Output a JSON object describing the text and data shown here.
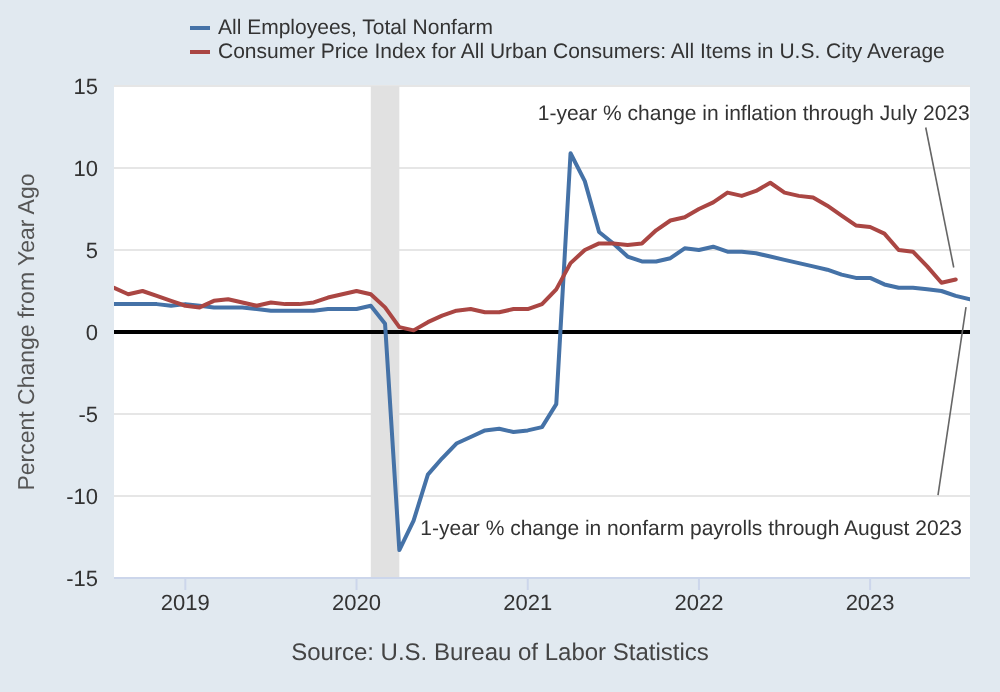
{
  "chart_data": {
    "type": "line",
    "ylabel": "Percent Change from Year Ago",
    "x": [
      "2018-08",
      "2018-09",
      "2018-10",
      "2018-11",
      "2018-12",
      "2019-01",
      "2019-02",
      "2019-03",
      "2019-04",
      "2019-05",
      "2019-06",
      "2019-07",
      "2019-08",
      "2019-09",
      "2019-10",
      "2019-11",
      "2019-12",
      "2020-01",
      "2020-02",
      "2020-03",
      "2020-04",
      "2020-05",
      "2020-06",
      "2020-07",
      "2020-08",
      "2020-09",
      "2020-10",
      "2020-11",
      "2020-12",
      "2021-01",
      "2021-02",
      "2021-03",
      "2021-04",
      "2021-05",
      "2021-06",
      "2021-07",
      "2021-08",
      "2021-09",
      "2021-10",
      "2021-11",
      "2021-12",
      "2022-01",
      "2022-02",
      "2022-03",
      "2022-04",
      "2022-05",
      "2022-06",
      "2022-07",
      "2022-08",
      "2022-09",
      "2022-10",
      "2022-11",
      "2022-12",
      "2023-01",
      "2023-02",
      "2023-03",
      "2023-04",
      "2023-05",
      "2023-06",
      "2023-07",
      "2023-08"
    ],
    "series": [
      {
        "name": "All Employees, Total Nonfarm",
        "color": "#4572a7",
        "values": [
          1.7,
          1.7,
          1.7,
          1.7,
          1.6,
          1.7,
          1.6,
          1.5,
          1.5,
          1.5,
          1.4,
          1.3,
          1.3,
          1.3,
          1.3,
          1.4,
          1.4,
          1.4,
          1.6,
          0.5,
          -13.3,
          -11.5,
          -8.7,
          -7.7,
          -6.8,
          -6.4,
          -6.0,
          -5.9,
          -6.1,
          -6.0,
          -5.8,
          -4.4,
          10.9,
          9.2,
          6.1,
          5.4,
          4.6,
          4.3,
          4.3,
          4.5,
          5.1,
          5.0,
          5.2,
          4.9,
          4.9,
          4.8,
          4.6,
          4.4,
          4.2,
          4.0,
          3.8,
          3.5,
          3.3,
          3.3,
          2.9,
          2.7,
          2.7,
          2.6,
          2.5,
          2.2,
          2.0
        ]
      },
      {
        "name": "Consumer Price Index for All Urban Consumers: All Items in U.S. City Average",
        "color": "#aa4643",
        "values": [
          2.7,
          2.3,
          2.5,
          2.2,
          1.9,
          1.6,
          1.5,
          1.9,
          2.0,
          1.8,
          1.6,
          1.8,
          1.7,
          1.7,
          1.8,
          2.1,
          2.3,
          2.5,
          2.3,
          1.5,
          0.3,
          0.1,
          0.6,
          1.0,
          1.3,
          1.4,
          1.2,
          1.2,
          1.4,
          1.4,
          1.7,
          2.6,
          4.2,
          5.0,
          5.4,
          5.4,
          5.3,
          5.4,
          6.2,
          6.8,
          7.0,
          7.5,
          7.9,
          8.5,
          8.3,
          8.6,
          9.1,
          8.5,
          8.3,
          8.2,
          7.7,
          7.1,
          6.5,
          6.4,
          6.0,
          5.0,
          4.9,
          4.0,
          3.0,
          3.2,
          null
        ]
      }
    ],
    "xlim": [
      "2018-08",
      "2023-08"
    ],
    "xticks": [
      {
        "value": "2019",
        "label": "2019"
      },
      {
        "value": "2020",
        "label": "2020"
      },
      {
        "value": "2021",
        "label": "2021"
      },
      {
        "value": "2022",
        "label": "2022"
      },
      {
        "value": "2023",
        "label": "2023"
      }
    ],
    "ylim": [
      -15,
      15
    ],
    "yticks": [
      -15,
      -10,
      -5,
      0,
      5,
      10,
      15
    ],
    "grid": "y",
    "legend": "top",
    "ref_lines": [
      {
        "axis": "y",
        "value": 0,
        "color": "#000000"
      }
    ],
    "bands": [
      {
        "axis": "x",
        "from": "2020-02",
        "to": "2020-04",
        "color": "#e1e1e1"
      }
    ],
    "annotations": [
      {
        "text": "1-year % change in inflation through July 2023",
        "x": "2023-07",
        "y": 3.2
      },
      {
        "text": "1-year % change in nonfarm payrolls through August 2023",
        "x": "2023-08",
        "y": 2.0
      },
      "Source: U.S. Bureau of Labor Statistics"
    ]
  }
}
